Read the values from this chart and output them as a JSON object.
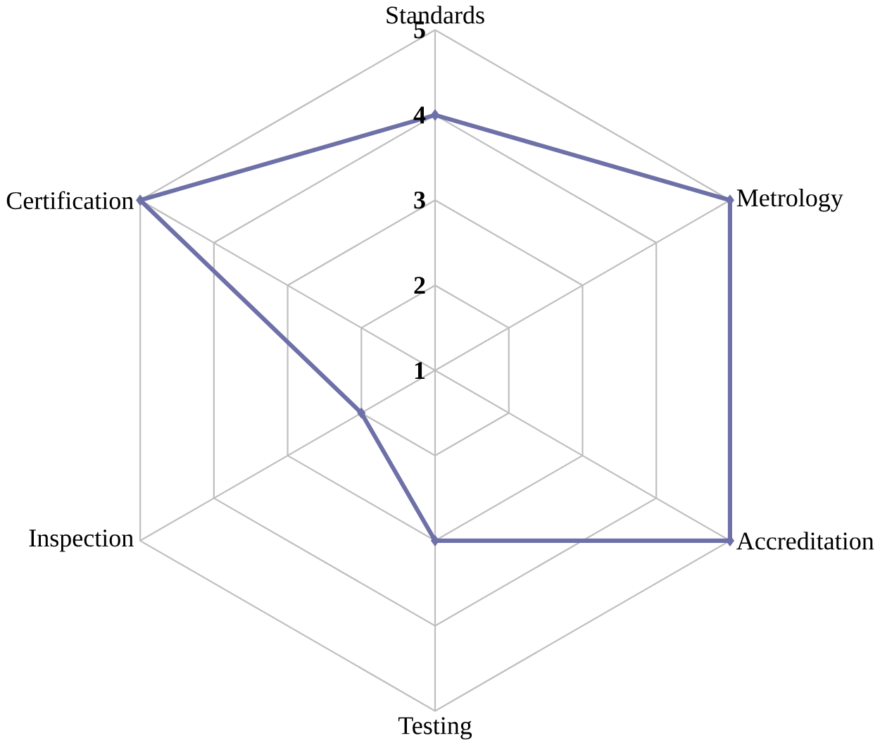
{
  "chart_data": {
    "type": "radar",
    "categories": [
      "Standards",
      "Metrology",
      "Accreditation",
      "Testing",
      "Inspection",
      "Certification"
    ],
    "series": [
      {
        "color": "#6e70a8",
        "values": [
          4,
          5,
          5,
          3,
          2,
          5
        ]
      }
    ],
    "ylim": [
      1,
      5
    ],
    "yticks": [
      1,
      2,
      3,
      4,
      5
    ],
    "grid": true,
    "marker": "diamond"
  }
}
